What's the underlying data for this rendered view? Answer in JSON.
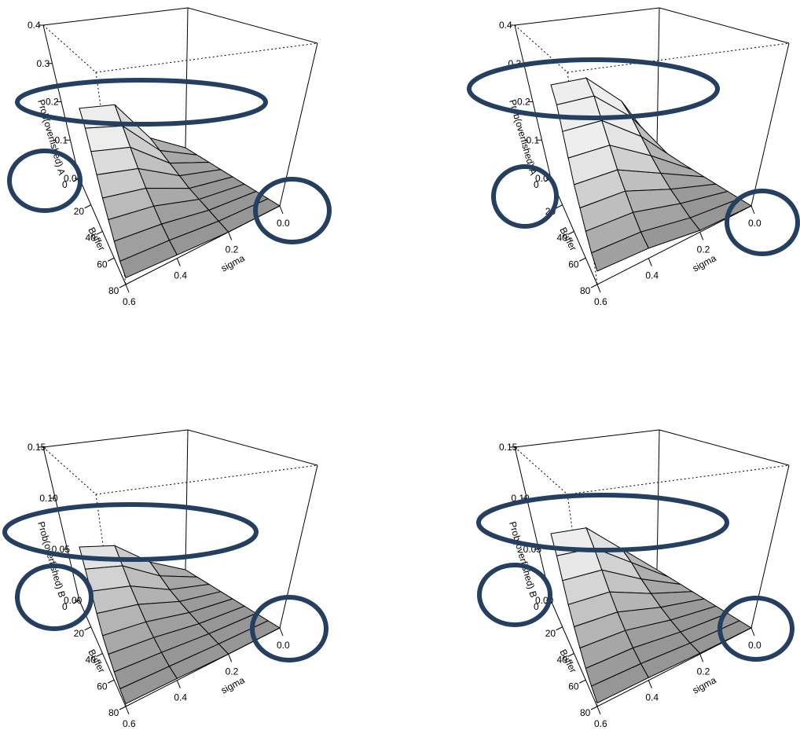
{
  "highlight_color": "#243f60",
  "chart_data": [
    {
      "type": "surface",
      "position": "top-left",
      "xlabel": "sigma",
      "ylabel": "Buffer",
      "zlabel": "Prob(overfished) A",
      "sigma_ticks": [
        "0.0",
        "0.2",
        "0.4",
        "0.6"
      ],
      "buffer_ticks": [
        "0",
        "20",
        "40",
        "60",
        "80"
      ],
      "z_ticks": [
        "0.0",
        "0.1",
        "0.2",
        "0.3",
        "0.4"
      ],
      "zlim": [
        0,
        0.4
      ],
      "sigma": [
        0.0,
        0.2,
        0.4,
        0.6
      ],
      "buffer": [
        0,
        10,
        20,
        30,
        40,
        50,
        60,
        70,
        80
      ],
      "z": [
        [
          0.0,
          0.0,
          0.0,
          0.0,
          0.0,
          0.0,
          0.0,
          0.0,
          0.0
        ],
        [
          0.06,
          0.05,
          0.04,
          0.03,
          0.02,
          0.015,
          0.01,
          0.005,
          0.0
        ],
        [
          0.19,
          0.16,
          0.13,
          0.1,
          0.075,
          0.055,
          0.035,
          0.02,
          0.01
        ],
        [
          0.21,
          0.19,
          0.16,
          0.13,
          0.1,
          0.075,
          0.05,
          0.03,
          0.02
        ]
      ]
    },
    {
      "type": "surface",
      "position": "top-right",
      "xlabel": "sigma",
      "ylabel": "Buffer",
      "zlabel": "Prob(overfished) A",
      "sigma_ticks": [
        "0.0",
        "0.2",
        "0.4",
        "0.6"
      ],
      "buffer_ticks": [
        "0",
        "20",
        "40",
        "60",
        "80"
      ],
      "z_ticks": [
        "0.0",
        "0.1",
        "0.2",
        "0.3",
        "0.4"
      ],
      "zlim": [
        0,
        0.4
      ],
      "sigma": [
        0.0,
        0.2,
        0.4,
        0.6
      ],
      "buffer": [
        0,
        10,
        20,
        30,
        40,
        50,
        60,
        70,
        80
      ],
      "z": [
        [
          0.0,
          0.0,
          0.0,
          0.0,
          0.0,
          0.0,
          0.0,
          0.0,
          0.0
        ],
        [
          0.17,
          0.15,
          0.12,
          0.09,
          0.065,
          0.045,
          0.03,
          0.015,
          0.005
        ],
        [
          0.27,
          0.25,
          0.21,
          0.17,
          0.13,
          0.1,
          0.07,
          0.045,
          0.03
        ],
        [
          0.28,
          0.26,
          0.22,
          0.18,
          0.14,
          0.11,
          0.08,
          0.055,
          0.04
        ]
      ]
    },
    {
      "type": "surface",
      "position": "bottom-left",
      "xlabel": "sigma",
      "ylabel": "Buffer",
      "zlabel": "Prob(overfished) B",
      "sigma_ticks": [
        "0.0",
        "0.2",
        "0.4",
        "0.6"
      ],
      "buffer_ticks": [
        "0",
        "20",
        "40",
        "60",
        "80"
      ],
      "z_ticks": [
        "0.00",
        "0.05",
        "0.10",
        "0.15"
      ],
      "zlim": [
        0,
        0.15
      ],
      "sigma": [
        0.0,
        0.2,
        0.4,
        0.6
      ],
      "buffer": [
        0,
        10,
        20,
        30,
        40,
        50,
        60,
        70,
        80
      ],
      "z": [
        [
          0.0,
          0.0,
          0.0,
          0.0,
          0.0,
          0.0,
          0.0,
          0.0,
          0.0
        ],
        [
          0.02,
          0.015,
          0.01,
          0.007,
          0.005,
          0.003,
          0.002,
          0.001,
          0.0
        ],
        [
          0.05,
          0.04,
          0.03,
          0.022,
          0.015,
          0.01,
          0.006,
          0.003,
          0.002
        ],
        [
          0.06,
          0.05,
          0.04,
          0.03,
          0.02,
          0.014,
          0.009,
          0.005,
          0.003
        ]
      ]
    },
    {
      "type": "surface",
      "position": "bottom-right",
      "xlabel": "sigma",
      "ylabel": "Buffer",
      "zlabel": "Prob(overfished) B",
      "sigma_ticks": [
        "0.0",
        "0.2",
        "0.4",
        "0.6"
      ],
      "buffer_ticks": [
        "0",
        "20",
        "40",
        "60",
        "80"
      ],
      "z_ticks": [
        "0.00",
        "0.05",
        "0.10",
        "0.15"
      ],
      "zlim": [
        0,
        0.15
      ],
      "sigma": [
        0.0,
        0.2,
        0.4,
        0.6
      ],
      "buffer": [
        0,
        10,
        20,
        30,
        40,
        50,
        60,
        70,
        80
      ],
      "z": [
        [
          0.0,
          0.0,
          0.0,
          0.0,
          0.0,
          0.0,
          0.0,
          0.0,
          0.0
        ],
        [
          0.035,
          0.03,
          0.022,
          0.016,
          0.011,
          0.007,
          0.004,
          0.002,
          0.001
        ],
        [
          0.07,
          0.06,
          0.048,
          0.036,
          0.026,
          0.018,
          0.011,
          0.006,
          0.003
        ],
        [
          0.075,
          0.065,
          0.052,
          0.04,
          0.03,
          0.021,
          0.013,
          0.008,
          0.004
        ]
      ]
    }
  ]
}
